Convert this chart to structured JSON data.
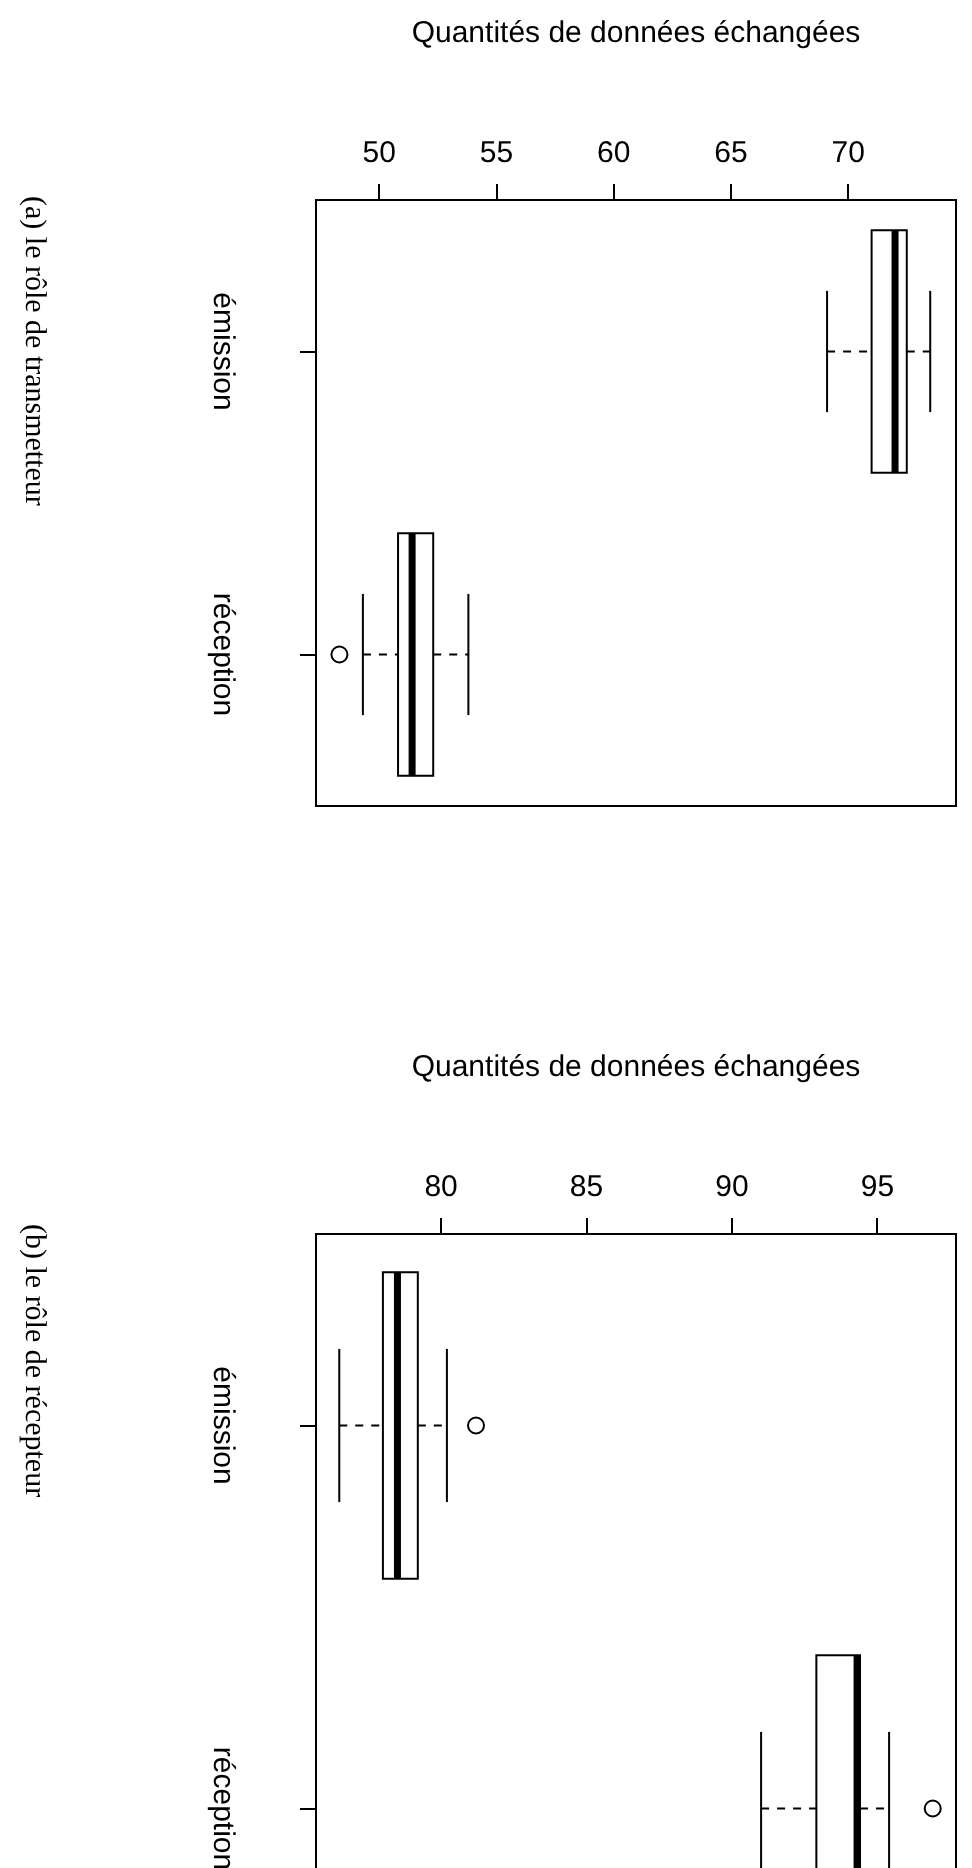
{
  "chart_data": [
    {
      "type": "box",
      "title": "(a) le rôle de transmetteur",
      "xlabel": "Quantités de données échangées",
      "orientation": "horizontal",
      "categories": [
        "émission",
        "réception"
      ],
      "boxes": [
        {
          "low": 69.1,
          "q1": 71.0,
          "median": 72.0,
          "q3": 72.5,
          "high": 73.5
        },
        {
          "low": 49.3,
          "q1": 50.8,
          "median": 51.4,
          "q3": 52.3,
          "high": 53.8,
          "outliers": [
            48.3
          ]
        }
      ],
      "xlim": [
        47.3,
        74.6
      ],
      "xticks": [
        50,
        55,
        60,
        65,
        70
      ],
      "grid": false
    },
    {
      "type": "box",
      "title": "(b) le rôle de récepteur",
      "xlabel": "Quantités de données échangées",
      "orientation": "horizontal",
      "categories": [
        "émission",
        "réception"
      ],
      "boxes": [
        {
          "low": 76.5,
          "q1": 78.0,
          "median": 78.5,
          "q3": 79.2,
          "high": 80.2,
          "outliers": [
            81.2
          ]
        },
        {
          "low": 91.0,
          "q1": 92.9,
          "median": 94.3,
          "q3": 94.4,
          "high": 95.4,
          "outliers": [
            96.9
          ]
        }
      ],
      "xlim": [
        75.7,
        97.7
      ],
      "xticks": [
        80,
        85,
        90,
        95
      ],
      "grid": false
    }
  ]
}
